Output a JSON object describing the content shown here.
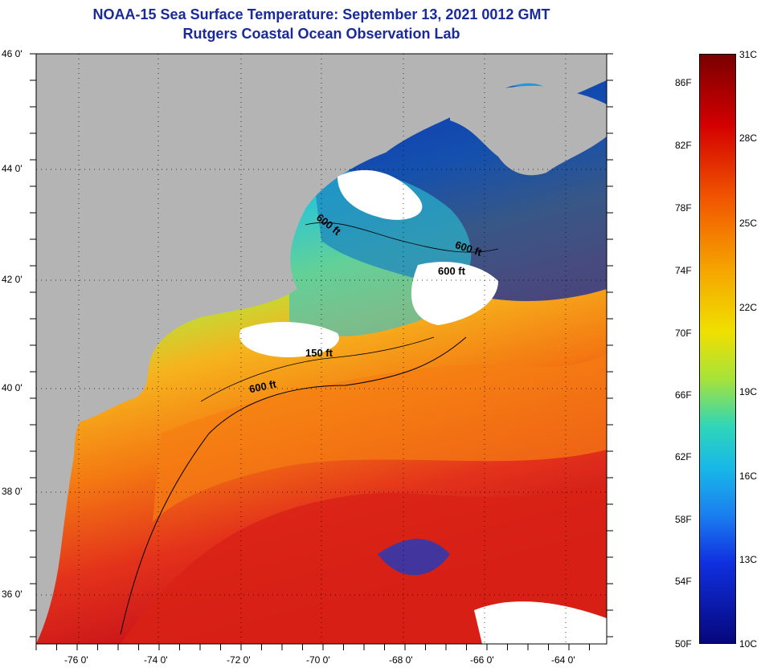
{
  "title_line1": "NOAA-15 Sea Surface Temperature:  September 13, 2021 0012 GMT",
  "title_line2": "Rutgers Coastal Ocean Observation Lab",
  "lat_labels": [
    "46 0'",
    "44 0'",
    "42 0'",
    "40 0'",
    "38 0'",
    "36 0'"
  ],
  "lon_labels": [
    "-76 0'",
    "-74 0'",
    "-72 0'",
    "-70 0'",
    "-68 0'",
    "-66 0'",
    "-64 0'"
  ],
  "contour_labels": [
    "600 ft",
    "600 ft",
    "600 ft",
    "150 ft",
    "600 ft"
  ],
  "colorbar": {
    "fahrenheit": [
      "86F",
      "82F",
      "78F",
      "74F",
      "70F",
      "66F",
      "62F",
      "58F",
      "54F",
      "50F"
    ],
    "celsius": [
      "31C",
      "28C",
      "25C",
      "22C",
      "19C",
      "16C",
      "13C",
      "10C"
    ]
  },
  "colors": {
    "title": "#1a2a9a",
    "land": "#b4b4b4",
    "cloud": "#ffffff",
    "warm": "#d81e10",
    "cold": "#0a1c8a"
  }
}
